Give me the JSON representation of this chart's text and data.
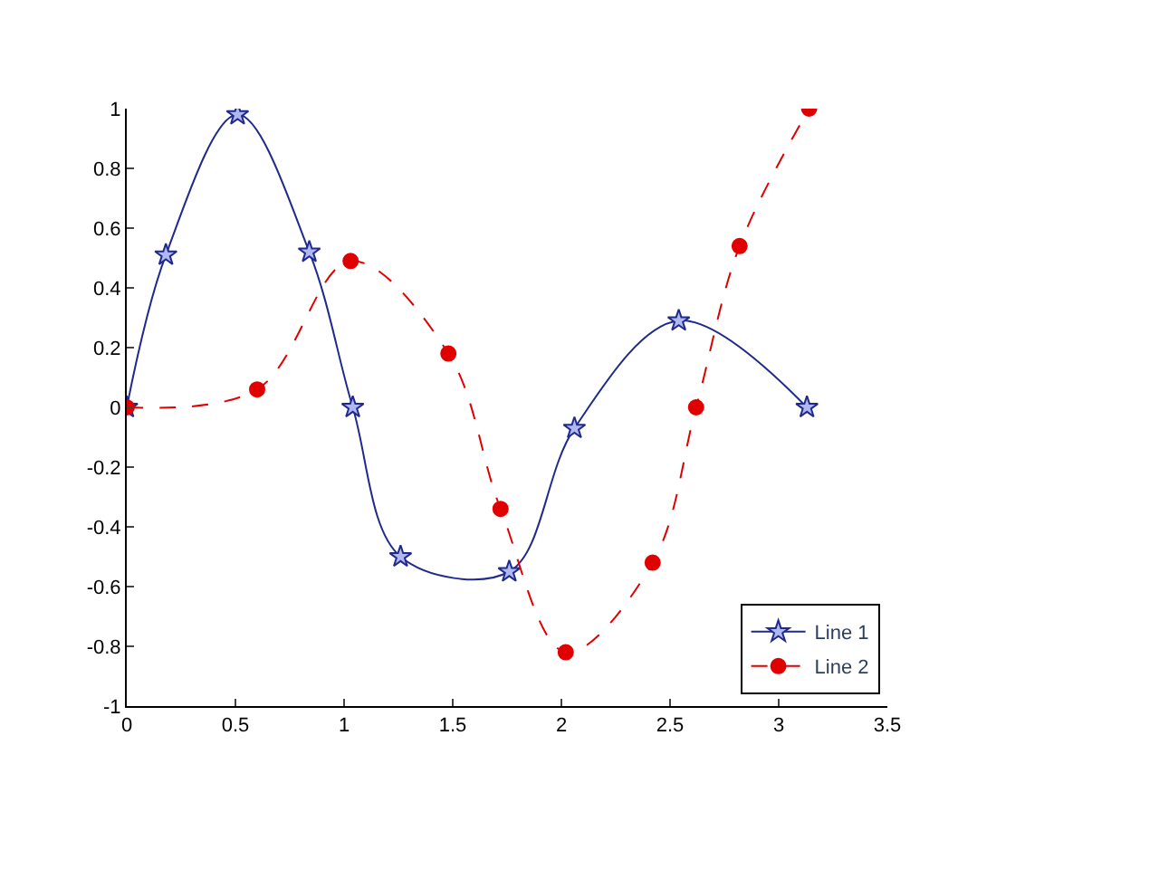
{
  "chart_data": {
    "type": "line",
    "xlim": [
      0,
      3.5
    ],
    "ylim": [
      -1,
      1
    ],
    "xticks": [
      0,
      0.5,
      1,
      1.5,
      2,
      2.5,
      3,
      3.5
    ],
    "yticks": [
      -1,
      -0.8,
      -0.6,
      -0.4,
      -0.2,
      0,
      0.2,
      0.4,
      0.6,
      0.8,
      1
    ],
    "legend": "bottom right",
    "series": [
      {
        "name": "Line 1",
        "color": "#1f2a8c",
        "marker": "star",
        "line_style": "solid",
        "x": [
          0,
          0.18,
          0.51,
          0.84,
          1.04,
          1.26,
          1.76,
          2.06,
          2.54,
          3.13
        ],
        "values": [
          0,
          0.51,
          0.98,
          0.52,
          0,
          -0.5,
          -0.55,
          -0.07,
          0.29,
          0
        ]
      },
      {
        "name": "Line 2",
        "color": "#e00000",
        "marker": "circle",
        "line_style": "dashed",
        "x": [
          0,
          0.6,
          1.03,
          1.48,
          1.72,
          2.02,
          2.42,
          2.62,
          2.82,
          3.14
        ],
        "values": [
          0,
          0.06,
          0.49,
          0.18,
          -0.34,
          -0.82,
          -0.52,
          0,
          0.54,
          1.0
        ]
      }
    ]
  }
}
